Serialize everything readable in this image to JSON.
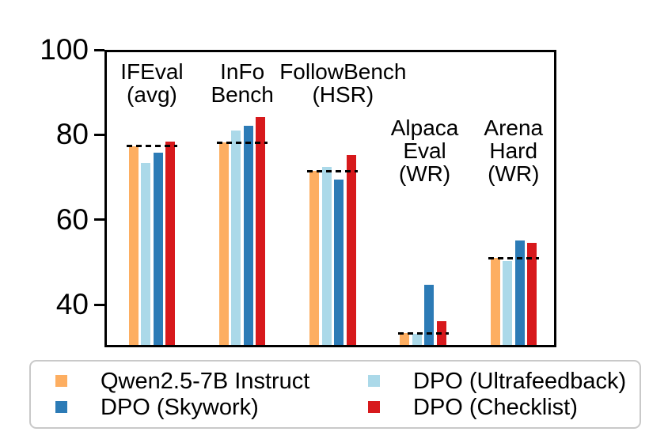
{
  "chart_data": {
    "type": "bar",
    "title": "",
    "xlabel": "",
    "ylabel": "",
    "ylim": [
      30,
      100
    ],
    "yticks": [
      40,
      60,
      80,
      100
    ],
    "grid": false,
    "legend_position": "bottom",
    "categories": [
      "IFEval (avg)",
      "InFo Bench",
      "FollowBench (HSR)",
      "Alpaca Eval (WR)",
      "Arena Hard (WR)"
    ],
    "category_label_lines": [
      [
        "IFEval",
        "(avg)"
      ],
      [
        "InFo",
        "Bench"
      ],
      [
        "FollowBench",
        "(HSR)"
      ],
      [
        "Alpaca",
        "Eval",
        "(WR)"
      ],
      [
        "Arena",
        "Hard",
        "(WR)"
      ]
    ],
    "series": [
      {
        "name": "Qwen2.5-7B Instruct",
        "color": "#FDAE61",
        "values": [
          77.3,
          78.2,
          71.5,
          33.3,
          51.0
        ]
      },
      {
        "name": "DPO (Ultrafeedback)",
        "color": "#ABD9E9",
        "values": [
          73.3,
          81.1,
          72.5,
          33.1,
          50.3
        ]
      },
      {
        "name": "DPO (Skywork)",
        "color": "#2C7BB6",
        "values": [
          75.8,
          82.1,
          69.5,
          44.8,
          55.1
        ]
      },
      {
        "name": "DPO (Checklist)",
        "color": "#D7191C",
        "values": [
          78.4,
          84.2,
          75.2,
          36.1,
          54.5
        ]
      }
    ],
    "baseline_values": [
      77.3,
      78.2,
      71.5,
      33.3,
      51.0
    ],
    "baseline_style": "dashed-black",
    "legend_rows": [
      [
        {
          "label": "Qwen2.5-7B Instruct",
          "color": "#FDAE61"
        },
        {
          "label": "DPO (Ultrafeedback)",
          "color": "#ABD9E9"
        }
      ],
      [
        {
          "label": "DPO (Skywork)",
          "color": "#2C7BB6"
        },
        {
          "label": "DPO (Checklist)",
          "color": "#D7191C"
        }
      ]
    ],
    "axis_color": "#000000",
    "background_color": "#ffffff"
  }
}
